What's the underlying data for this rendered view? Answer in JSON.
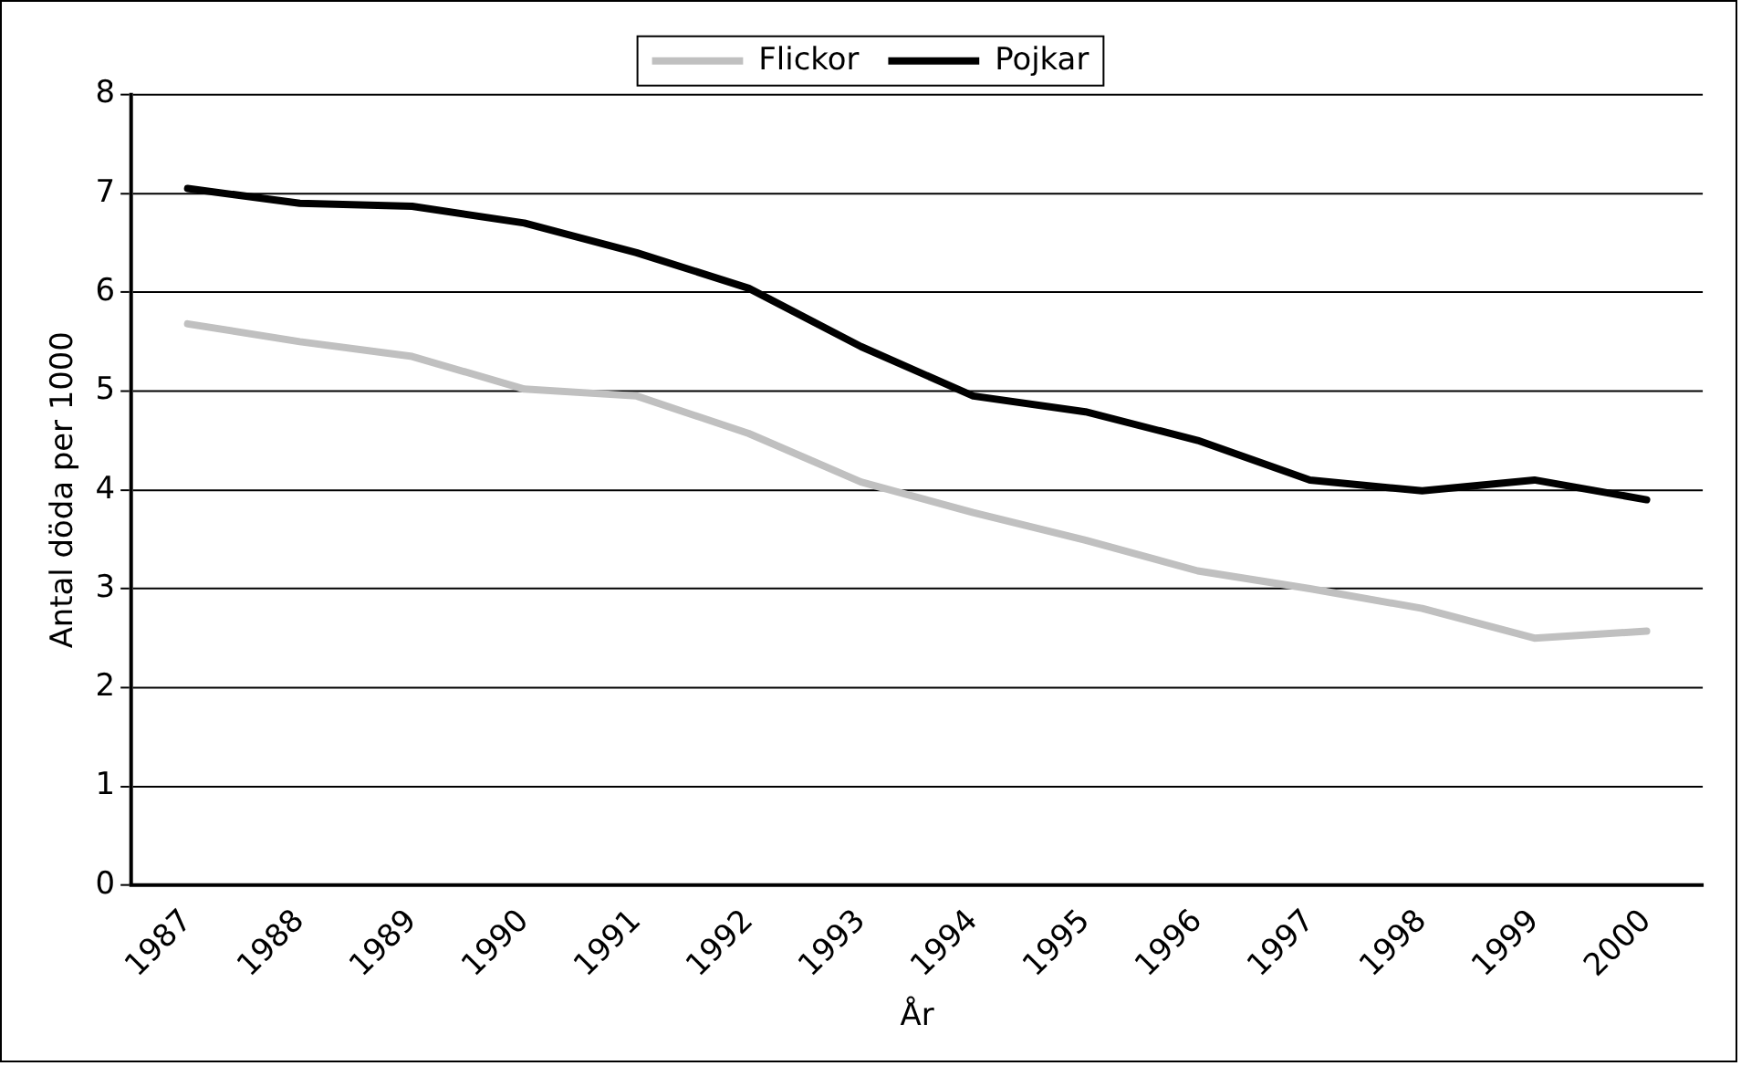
{
  "chart_data": {
    "type": "line",
    "xlabel": "År",
    "ylabel": "Antal döda per 1000",
    "categories": [
      "1987",
      "1988",
      "1989",
      "1990",
      "1991",
      "1992",
      "1993",
      "1994",
      "1995",
      "1996",
      "1997",
      "1998",
      "1999",
      "2000"
    ],
    "series": [
      {
        "name": "Flickor",
        "color": "#c0c0c0",
        "values": [
          5.68,
          5.5,
          5.35,
          5.02,
          4.95,
          4.57,
          4.08,
          3.77,
          3.49,
          3.18,
          3.0,
          2.8,
          2.5,
          2.57
        ]
      },
      {
        "name": "Pojkar",
        "color": "#000000",
        "values": [
          7.05,
          6.9,
          6.87,
          6.7,
          6.4,
          6.04,
          5.45,
          4.95,
          4.79,
          4.5,
          4.1,
          3.99,
          4.1,
          3.9
        ]
      }
    ],
    "ylim": [
      0,
      8
    ],
    "yticks": [
      0,
      1,
      2,
      3,
      4,
      5,
      6,
      7,
      8
    ],
    "grid": "y",
    "legend": "top",
    "marker": "none",
    "line_style": "solid"
  }
}
